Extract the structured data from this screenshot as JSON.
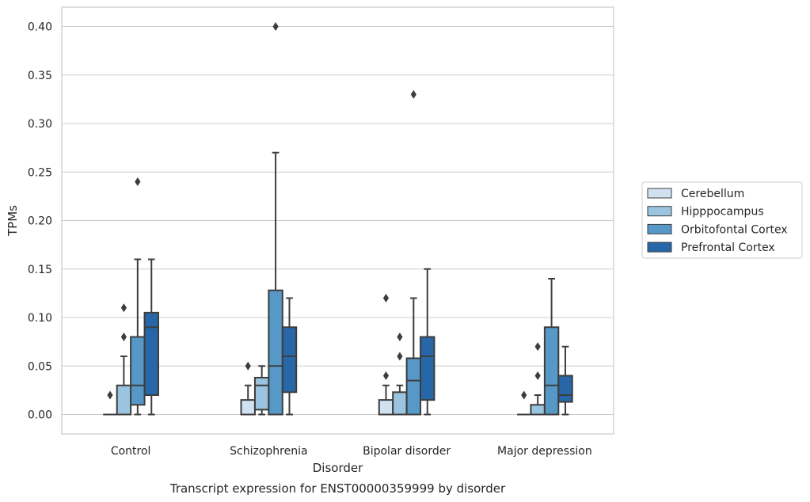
{
  "chart_data": {
    "type": "box",
    "title": "",
    "caption": "Transcript expression for ENST00000359999 by disorder",
    "xlabel": "Disorder",
    "ylabel": "TPMs",
    "ylim": [
      -0.02,
      0.42
    ],
    "yticks": [
      "0.00",
      "0.05",
      "0.10",
      "0.15",
      "0.20",
      "0.25",
      "0.30",
      "0.35",
      "0.40"
    ],
    "grid": true,
    "legend_position": "right",
    "categories": [
      "Control",
      "Schizophrenia",
      "Bipolar disorder",
      "Major depression"
    ],
    "series": [
      {
        "name": "Cerebellum",
        "color": "#d0e2f2",
        "boxes": [
          {
            "min": 0.0,
            "q1": 0.0,
            "median": 0.0,
            "q3": 0.0,
            "max": 0.0,
            "outliers": [
              0.02
            ]
          },
          {
            "min": 0.0,
            "q1": 0.0,
            "median": 0.0,
            "q3": 0.015,
            "max": 0.03,
            "outliers": [
              0.05
            ]
          },
          {
            "min": 0.0,
            "q1": 0.0,
            "median": 0.0,
            "q3": 0.015,
            "max": 0.03,
            "outliers": [
              0.04,
              0.12
            ]
          },
          {
            "min": 0.0,
            "q1": 0.0,
            "median": 0.0,
            "q3": 0.0,
            "max": 0.0,
            "outliers": [
              0.02
            ]
          }
        ]
      },
      {
        "name": "Hipppocampus",
        "color": "#9ac4e0",
        "boxes": [
          {
            "min": 0.0,
            "q1": 0.0,
            "median": 0.0,
            "q3": 0.03,
            "max": 0.06,
            "outliers": [
              0.08,
              0.11
            ]
          },
          {
            "min": 0.0,
            "q1": 0.005,
            "median": 0.03,
            "q3": 0.038,
            "max": 0.05,
            "outliers": []
          },
          {
            "min": 0.0,
            "q1": 0.0,
            "median": 0.0,
            "q3": 0.023,
            "max": 0.03,
            "outliers": [
              0.06,
              0.08
            ]
          },
          {
            "min": 0.0,
            "q1": 0.0,
            "median": 0.0,
            "q3": 0.01,
            "max": 0.02,
            "outliers": [
              0.04,
              0.07
            ]
          }
        ]
      },
      {
        "name": "Orbitofontal Cortex",
        "color": "#5699c8",
        "boxes": [
          {
            "min": 0.0,
            "q1": 0.01,
            "median": 0.03,
            "q3": 0.08,
            "max": 0.16,
            "outliers": [
              0.24
            ]
          },
          {
            "min": 0.0,
            "q1": 0.0,
            "median": 0.05,
            "q3": 0.128,
            "max": 0.27,
            "outliers": [
              0.4
            ]
          },
          {
            "min": 0.0,
            "q1": 0.0,
            "median": 0.035,
            "q3": 0.058,
            "max": 0.12,
            "outliers": [
              0.33
            ]
          },
          {
            "min": 0.0,
            "q1": 0.0,
            "median": 0.03,
            "q3": 0.09,
            "max": 0.14,
            "outliers": []
          }
        ]
      },
      {
        "name": "Prefrontal Cortex",
        "color": "#2767a7",
        "boxes": [
          {
            "min": 0.0,
            "q1": 0.02,
            "median": 0.09,
            "q3": 0.105,
            "max": 0.16,
            "outliers": []
          },
          {
            "min": 0.0,
            "q1": 0.023,
            "median": 0.06,
            "q3": 0.09,
            "max": 0.12,
            "outliers": []
          },
          {
            "min": 0.0,
            "q1": 0.015,
            "median": 0.06,
            "q3": 0.08,
            "max": 0.15,
            "outliers": []
          },
          {
            "min": 0.0,
            "q1": 0.013,
            "median": 0.02,
            "q3": 0.04,
            "max": 0.07,
            "outliers": []
          }
        ]
      }
    ]
  }
}
